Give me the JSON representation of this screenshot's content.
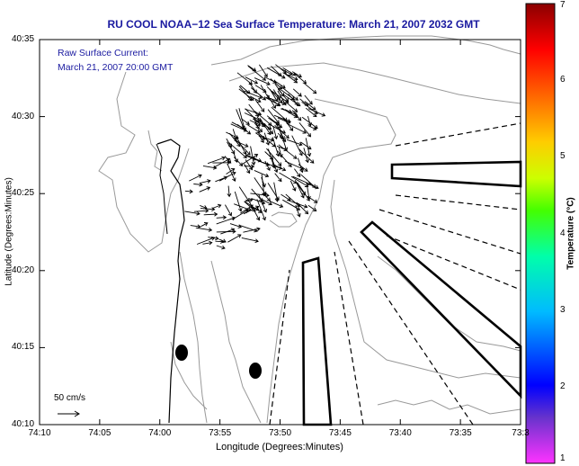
{
  "title": "RU COOL  NOAA−12  Sea Surface Temperature:  March 21, 2007 2032 GMT",
  "subtitle_line1": "Raw Surface Current:",
  "subtitle_line2": "March 21, 2007 20:00 GMT",
  "x_axis": {
    "label": "Longitude (Degrees:Minutes)",
    "ticks": [
      "74:10",
      "74:05",
      "74:00",
      "73:55",
      "73:50",
      "73:45",
      "73:40",
      "73:35",
      "73:3"
    ]
  },
  "y_axis": {
    "label": "Latitude (Degrees:Minutes)",
    "ticks": [
      "40:35",
      "40:30",
      "40:25",
      "40:20",
      "40:15",
      "40:10"
    ]
  },
  "colorbar": {
    "label": "Temperature (°C)",
    "ticks": [
      "1",
      "2",
      "3",
      "4",
      "5",
      "6",
      "7"
    ],
    "range": [
      1,
      7
    ],
    "colors": [
      "#ff33ff",
      "#6633cc",
      "#0000ff",
      "#00bbff",
      "#00ffaa",
      "#44ff00",
      "#ccff00",
      "#ffcc00",
      "#ff6600",
      "#ff0000",
      "#8b0000"
    ]
  },
  "current_scale": {
    "label": "50 cm/s"
  },
  "colors": {
    "title": "#1a1aa0",
    "contour": "#999999",
    "coast": "#000000"
  },
  "map_content": {
    "sst_pixels_visible": "none",
    "current_vectors": "black arrows",
    "shipping_lanes": "black outlined polygons",
    "buoys": "black filled ellipses"
  }
}
